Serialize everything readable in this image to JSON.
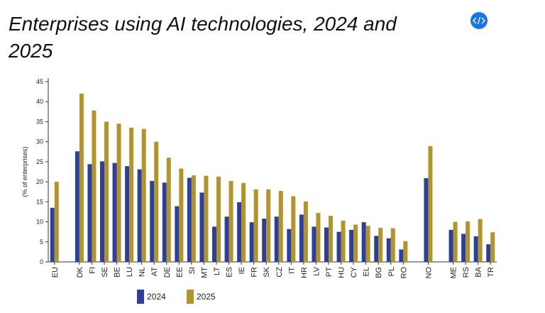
{
  "chart_data": {
    "type": "bar",
    "title_lines": [
      "Enterprises using AI technologies, 2024 and",
      "2025"
    ],
    "y_label": "(% of enterprises)",
    "categories": [
      "EU",
      null,
      "DK",
      "FI",
      "SE",
      "BE",
      "LU",
      "NL",
      "AT",
      "DE",
      "EE",
      "SI",
      "MT",
      "LT",
      "ES",
      "IE",
      "FR",
      "SK",
      "CZ",
      "IT",
      "HR",
      "LV",
      "PT",
      "HU",
      "CY",
      "EL",
      "BG",
      "PL",
      "RO",
      null,
      "NO",
      null,
      "ME",
      "RS",
      "BA",
      "TR"
    ],
    "series": [
      {
        "name": "2024",
        "color": "#2b3f9e",
        "values": [
          13.5,
          null,
          27.6,
          24.4,
          25.1,
          24.7,
          23.9,
          23.1,
          20.2,
          19.8,
          13.9,
          21.0,
          17.3,
          8.8,
          11.3,
          14.9,
          9.9,
          10.8,
          11.3,
          8.2,
          11.8,
          8.8,
          8.6,
          7.5,
          8.0,
          9.9,
          6.5,
          5.9,
          3.1,
          null,
          20.9,
          null,
          8.0,
          7.0,
          6.4,
          4.4
        ]
      },
      {
        "name": "2025",
        "color": "#b3942a",
        "values": [
          20.0,
          null,
          42.0,
          37.8,
          35.0,
          34.5,
          33.5,
          33.2,
          30.0,
          26.0,
          23.3,
          21.6,
          21.5,
          21.3,
          20.2,
          19.7,
          18.1,
          18.1,
          17.7,
          16.4,
          15.1,
          12.2,
          11.5,
          10.3,
          9.3,
          9.0,
          8.5,
          8.4,
          5.2,
          null,
          28.9,
          null,
          10.0,
          10.1,
          10.7,
          7.4
        ]
      }
    ],
    "ylim": [
      0,
      45
    ],
    "yticks": [
      0,
      5,
      10,
      15,
      20,
      25,
      30,
      35,
      40,
      45
    ],
    "legend": "bottom"
  }
}
